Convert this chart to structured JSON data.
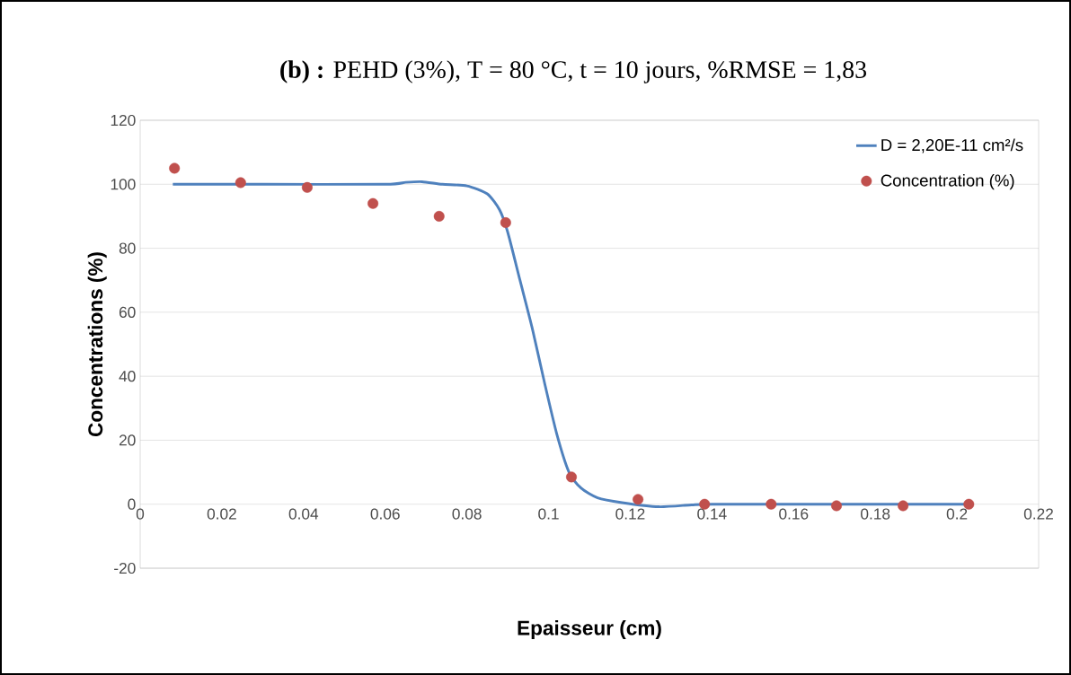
{
  "chart_data": {
    "type": "scatter",
    "title": "**(b) :** PEHD (3%), T = 80 °C, t = 10 jours, %RMSE = 1,83",
    "xlabel": "Epaisseur (cm)",
    "ylabel": "Concentrations (%)",
    "xlim": [
      0,
      0.22
    ],
    "xticks": [
      0,
      0.02,
      0.04,
      0.06,
      0.08,
      0.1,
      0.12,
      0.14,
      0.16,
      0.18,
      0.2,
      0.22
    ],
    "ylim": [
      -20,
      120
    ],
    "yticks": [
      -20,
      0,
      20,
      40,
      60,
      80,
      100,
      120
    ],
    "grid": "y",
    "legend": "top right",
    "series": [
      {
        "name": "D = 2,20E-11 cm²/s",
        "type": "line",
        "color": "#4f81bd",
        "marker": "none",
        "x": [
          0.008,
          0.03,
          0.06,
          0.065,
          0.069,
          0.074,
          0.08,
          0.085,
          0.088,
          0.09,
          0.093,
          0.096,
          0.099,
          0.102,
          0.105,
          0.108,
          0.112,
          0.118,
          0.127,
          0.135,
          0.14,
          0.17,
          0.203
        ],
        "values": [
          100,
          100,
          100,
          100.6,
          100.8,
          100,
          99.5,
          97,
          92,
          85,
          70,
          55,
          38,
          22,
          10,
          5,
          2,
          0.5,
          -0.8,
          -0.2,
          0,
          0,
          0
        ]
      },
      {
        "name": "Concentration (%)",
        "color": "#c0504d",
        "marker": "circle",
        "x": [
          0.0084,
          0.0246,
          0.0409,
          0.057,
          0.0732,
          0.0895,
          0.1056,
          0.1219,
          0.1382,
          0.1545,
          0.1705,
          0.1868,
          0.2029
        ],
        "values": [
          105,
          100.5,
          99,
          94,
          90,
          88,
          8.5,
          1.5,
          0,
          0,
          -0.5,
          -0.5,
          0
        ]
      }
    ]
  }
}
